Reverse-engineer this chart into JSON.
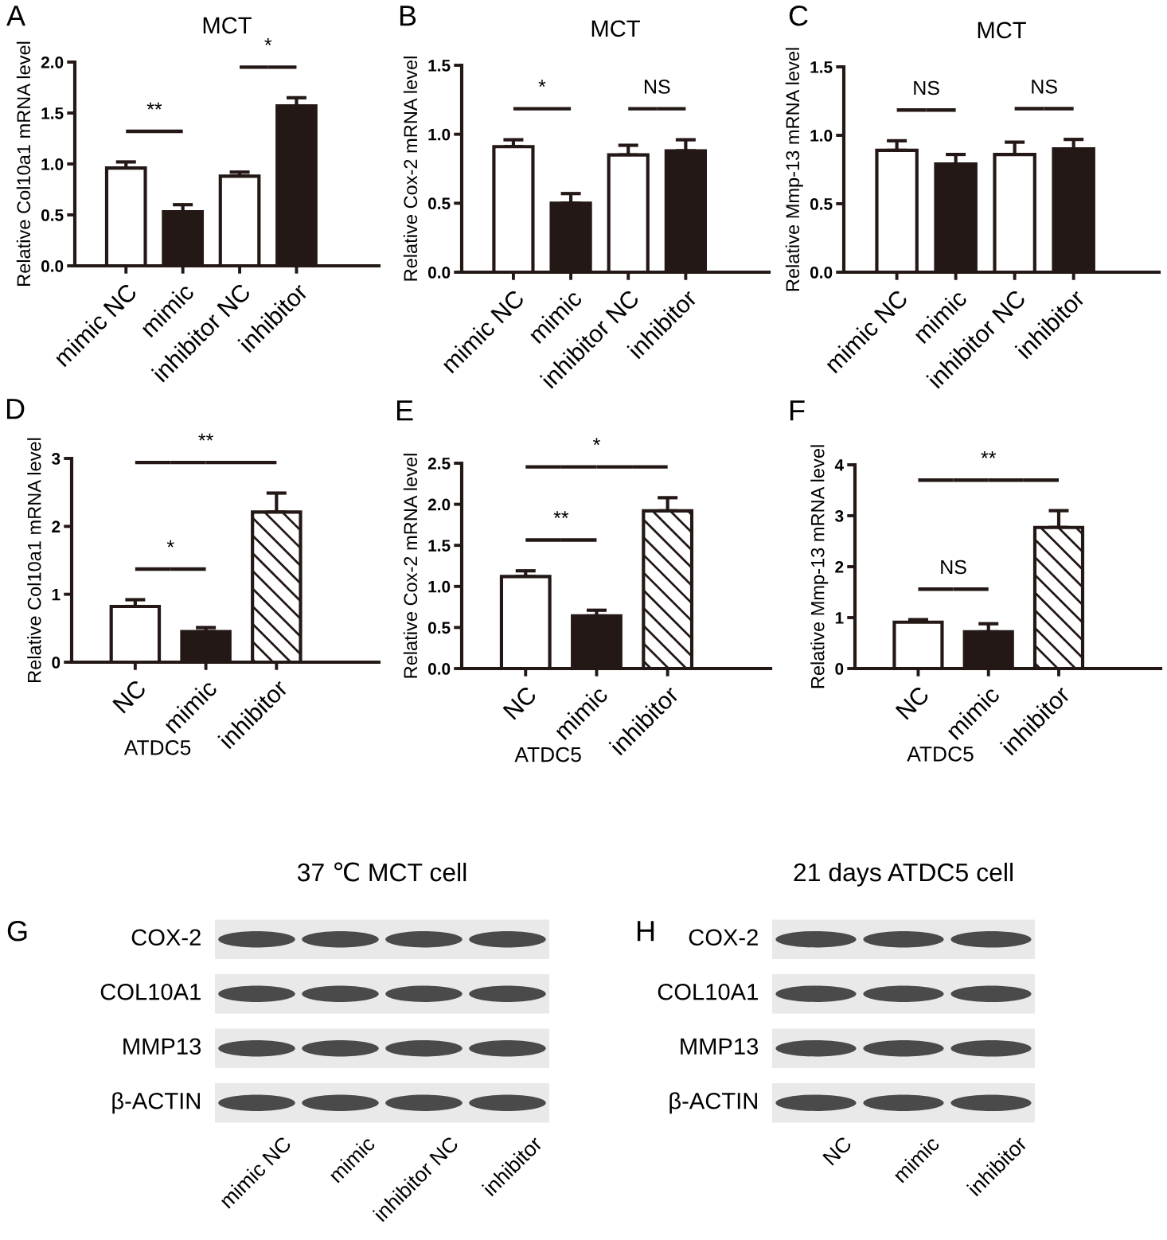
{
  "chart_data": [
    {
      "type": "bar",
      "title": "MCT",
      "ylabel": "Relative Col10a1 mRNA level",
      "categories": [
        "mimic NC",
        "mimic",
        "inhibitor NC",
        "inhibitor"
      ],
      "values": [
        0.96,
        0.53,
        0.88,
        1.57
      ],
      "colors": [
        "#ffffff",
        "#231815",
        "#ffffff",
        "#231815"
      ],
      "errors": [
        [
          0.96,
          1.02
        ],
        [
          0.53,
          0.6
        ],
        [
          0.88,
          0.92
        ],
        [
          1.57,
          1.65
        ]
      ],
      "ylim": [
        0,
        2.0
      ],
      "yticks": [
        {
          "value": 0,
          "label": "0.0"
        },
        0.5,
        {
          "value": 1,
          "label": "1.0"
        },
        1.5,
        {
          "value": 2,
          "label": "2.0"
        }
      ],
      "annotations": [
        "A",
        "**",
        "*"
      ]
    },
    {
      "type": "bar",
      "title": "MCT",
      "ylabel": "Relative Cox-2 mRNA level",
      "categories": [
        "mimic NC",
        "mimic",
        "inhibitor NC",
        "inhibitor"
      ],
      "values": [
        0.91,
        0.5,
        0.85,
        0.88
      ],
      "colors": [
        "#ffffff",
        "#231815",
        "#ffffff",
        "#231815"
      ],
      "errors": [
        [
          0.91,
          0.96
        ],
        [
          0.5,
          0.57
        ],
        [
          0.85,
          0.92
        ],
        [
          0.88,
          0.96
        ]
      ],
      "ylim": [
        0,
        1.5
      ],
      "yticks": [
        {
          "value": 0,
          "label": "0.0"
        },
        0.5,
        {
          "value": 1,
          "label": "1.0"
        },
        1.5
      ],
      "annotations": [
        "B",
        "*",
        "NS"
      ]
    },
    {
      "type": "bar",
      "title": "MCT",
      "ylabel": "Relative Mmp-13 mRNA level",
      "categories": [
        "mimic NC",
        "mimic",
        "inhibitor NC",
        "inhibitor"
      ],
      "values": [
        0.89,
        0.79,
        0.86,
        0.9
      ],
      "colors": [
        "#ffffff",
        "#231815",
        "#ffffff",
        "#231815"
      ],
      "errors": [
        [
          0.89,
          0.96
        ],
        [
          0.79,
          0.86
        ],
        [
          0.86,
          0.95
        ],
        [
          0.9,
          0.97
        ]
      ],
      "ylim": [
        0,
        1.5
      ],
      "yticks": [
        {
          "value": 0,
          "label": "0.0"
        },
        0.5,
        {
          "value": 1,
          "label": "1.0"
        },
        1.5
      ],
      "annotations": [
        "C",
        "NS",
        "NS"
      ]
    },
    {
      "type": "bar",
      "xlabel": "ATDC5",
      "ylabel": "Relative Col10a1 mRNA level",
      "categories": [
        "NC",
        "mimic",
        "inhibitor"
      ],
      "values": [
        0.82,
        0.45,
        2.21
      ],
      "colors": [
        "#ffffff",
        "#231815",
        "#ffffff"
      ],
      "errors": [
        [
          0.82,
          0.92
        ],
        [
          0.45,
          0.51
        ],
        [
          2.21,
          2.49
        ]
      ],
      "ylim": [
        0,
        3
      ],
      "yticks": [
        0,
        1,
        2,
        3
      ],
      "annotations": [
        "D",
        "*",
        "**"
      ]
    },
    {
      "type": "bar",
      "xlabel": "ATDC5",
      "ylabel": "Relative Cox-2 mRNA level",
      "categories": [
        "NC",
        "mimic",
        "inhibitor"
      ],
      "values": [
        1.12,
        0.64,
        1.92
      ],
      "colors": [
        "#ffffff",
        "#231815",
        "#ffffff"
      ],
      "errors": [
        [
          1.12,
          1.19
        ],
        [
          0.64,
          0.71
        ],
        [
          1.92,
          2.08
        ]
      ],
      "ylim": [
        0,
        2.5
      ],
      "yticks": [
        {
          "value": 0,
          "label": "0.0"
        },
        0.5,
        {
          "value": 1,
          "label": "1.0"
        },
        1.5,
        {
          "value": 2,
          "label": "2.0"
        },
        2.5
      ],
      "annotations": [
        "E",
        "**",
        "*"
      ]
    },
    {
      "type": "bar",
      "xlabel": "ATDC5",
      "ylabel": "Relative Mmp-13 mRNA level",
      "categories": [
        "NC",
        "mimic",
        "inhibitor"
      ],
      "values": [
        0.91,
        0.72,
        2.77
      ],
      "colors": [
        "#ffffff",
        "#231815",
        "#ffffff"
      ],
      "errors": [
        [
          0.91,
          0.96
        ],
        [
          0.72,
          0.88
        ],
        [
          2.77,
          3.1
        ]
      ],
      "ylim": [
        0,
        4
      ],
      "yticks": [
        0,
        1,
        2,
        3,
        4
      ],
      "annotations": [
        "F",
        "NS",
        "**"
      ]
    },
    {
      "type": "other",
      "title": "37 ℃ MCT cell",
      "categories": [
        "mimic NC",
        "mimic",
        "inhibitor NC",
        "inhibitor"
      ],
      "y_categories": [
        "COX-2",
        "COL10A1",
        "MMP13",
        "β-ACTIN"
      ],
      "annotations": [
        "G"
      ]
    },
    {
      "type": "other",
      "title": "21 days ATDC5 cell",
      "categories": [
        "NC",
        "mimic",
        "inhibitor"
      ],
      "y_categories": [
        "COX-2",
        "COL10A1",
        "MMP13",
        "β-ACTIN"
      ],
      "annotations": [
        "H"
      ]
    }
  ]
}
